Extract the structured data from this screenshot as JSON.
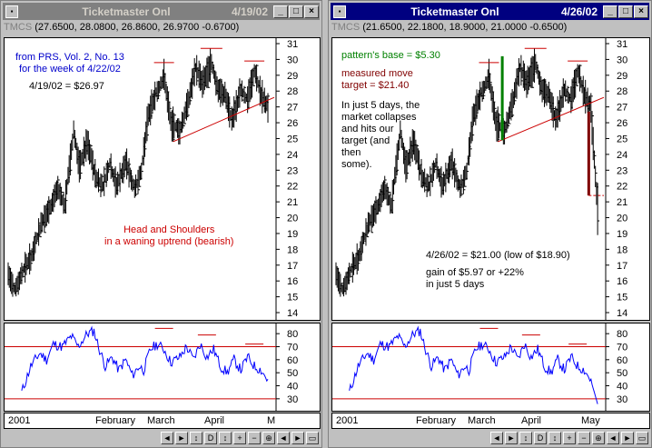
{
  "left": {
    "title": "Ticketmaster Onl",
    "date": "4/19/02",
    "ohlc": "TMCS (27.6500, 28.0800, 26.8600, 26.9700 -0.6700)",
    "ohlc_label": "TMCS",
    "ohlc_values": "(27.6500, 28.0800, 26.8600, 26.9700 -0.6700)",
    "annotations": {
      "source_line1": "from PRS, Vol. 2, No. 13",
      "source_line2": "for the week of 4/22/02",
      "price_note": "4/19/02 = $26.97",
      "pattern_line1": "Head and Shoulders",
      "pattern_line2": "in a waning uptrend (bearish)"
    },
    "months": [
      "2001",
      "February",
      "March",
      "April",
      "M"
    ]
  },
  "right": {
    "title": "Ticketmaster Onl",
    "date": "4/26/02",
    "ohlc": "TMCS (21.6500, 22.1800, 18.9000, 21.0000 -0.6500)",
    "ohlc_label": "TMCS",
    "ohlc_values": "(21.6500, 22.1800, 18.9000, 21.0000 -0.6500)",
    "annotations": {
      "base": "pattern's base = $5.30",
      "target_line1": "measured move",
      "target_line2": "target = $21.40",
      "story_line1": "In just 5 days, the",
      "story_line2": "market collapses",
      "story_line3": "and hits our",
      "story_line4": "target (and",
      "story_line5": "then",
      "story_line6": "some).",
      "result_line": "4/26/02 = $21.00 (low of $18.90)",
      "gain_line1": "gain of $5.97 or +22%",
      "gain_line2": "in just 5 days"
    },
    "months": [
      "2001",
      "February",
      "March",
      "April",
      "May"
    ]
  },
  "price_axis": [
    "31",
    "30",
    "29",
    "28",
    "27",
    "26",
    "25",
    "24",
    "23",
    "22",
    "21",
    "20",
    "19",
    "18",
    "17",
    "16",
    "15",
    "14"
  ],
  "osc_axis": [
    "80",
    "70",
    "60",
    "50",
    "40",
    "30"
  ],
  "titlebar_buttons": [
    "_",
    "□",
    "×"
  ],
  "toolbar_glyphs": [
    "◄",
    "►",
    "↕",
    "D",
    "↕",
    "+",
    "−",
    "⊕",
    "◄",
    "►",
    "▭"
  ],
  "colors": {
    "blue_text": "#0000cc",
    "red_text": "#cc0000",
    "green_text": "#008000",
    "brown": "#800000",
    "price_bar": "#000000",
    "osc_line": "#0000ff",
    "ref_line": "#cc0000"
  },
  "chart_data": {
    "type": "line",
    "series": [],
    "ylim": [
      14,
      31
    ],
    "osc_ylim": [
      25,
      85
    ],
    "osc_levels": [
      70,
      30
    ]
  }
}
